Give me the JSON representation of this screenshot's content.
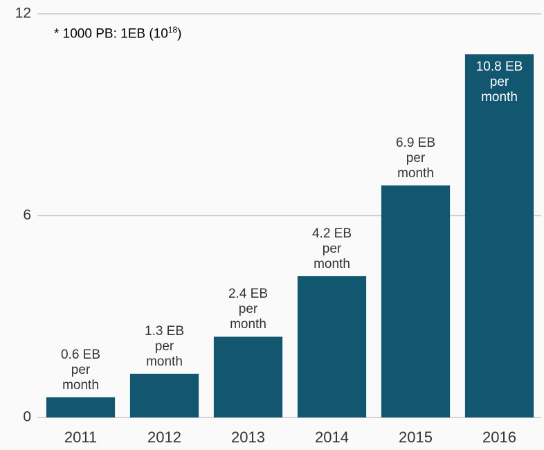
{
  "chart_data": {
    "type": "bar",
    "annotation": {
      "text": "* 1000 PB: 1EB (10",
      "superscript": "18",
      "suffix": ")"
    },
    "categories": [
      "2011",
      "2012",
      "2013",
      "2014",
      "2015",
      "2016"
    ],
    "values": [
      0.6,
      1.3,
      2.4,
      4.2,
      6.9,
      10.8
    ],
    "value_labels": [
      "0.6 EB per month",
      "1.3 EB per month",
      "2.4 EB per month",
      "4.2 EB per month",
      "6.9 EB per month",
      "10.8 EB per month"
    ],
    "color": "#125670",
    "ylim": [
      0,
      12
    ],
    "yticks": [
      0,
      6,
      12
    ],
    "grid": true
  }
}
